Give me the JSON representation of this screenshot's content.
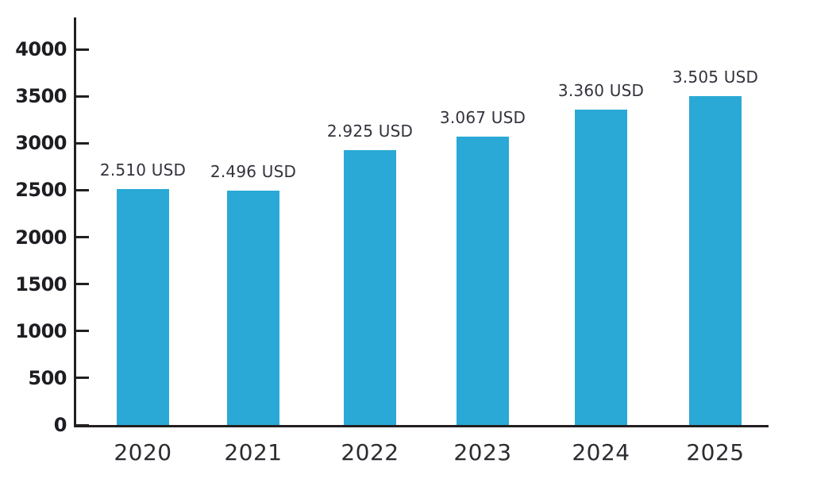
{
  "chart_data": {
    "type": "bar",
    "title": "",
    "xlabel": "",
    "ylabel": "",
    "categories": [
      "2020",
      "2021",
      "2022",
      "2023",
      "2024",
      "2025"
    ],
    "values": [
      2510,
      2496,
      2925,
      3067,
      3360,
      3505
    ],
    "value_labels": [
      "2.510 USD",
      "2.496 USD",
      "2.925 USD",
      "3.067 USD",
      "3.360 USD",
      "3.505 USD"
    ],
    "value_unit": "USD",
    "ylim": [
      0,
      4000
    ],
    "ytick_step": 500,
    "ytick_labels": [
      "0",
      "500",
      "1000",
      "1500",
      "2000",
      "2500",
      "3000",
      "3500",
      "4000"
    ],
    "grid": "off",
    "legend": "none",
    "colors": {
      "bar": "#2AA9D6",
      "axis": "#231F20",
      "tick_text": "#1D1D22",
      "value_text": "#33333D",
      "category_text": "#2B2B31",
      "background": "#FFFFFF"
    }
  }
}
